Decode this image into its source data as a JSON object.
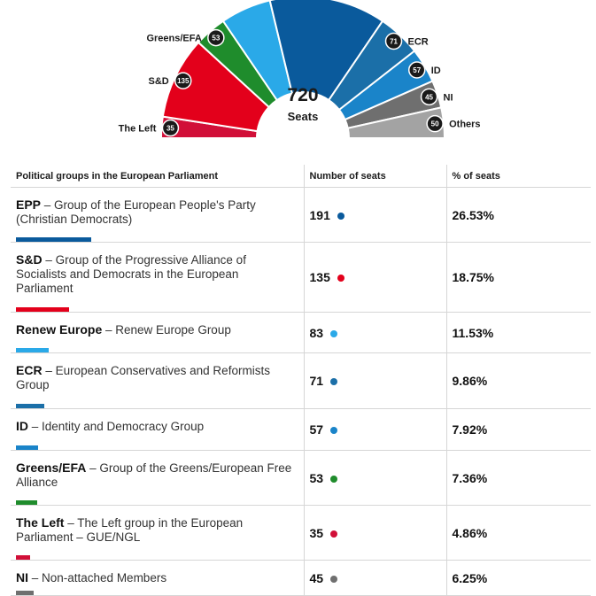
{
  "chart_data": {
    "type": "hemicycle",
    "total": 720,
    "total_label": "Seats",
    "groups": [
      {
        "abbr": "The Left",
        "name": "The Left group in the European Parliament – GUE/NGL",
        "seats": 35,
        "percent": "4.86%",
        "color": "#d10f38"
      },
      {
        "abbr": "S&D",
        "name": "Group of the Progressive Alliance of Socialists and Democrats in the European Parliament",
        "seats": 135,
        "percent": "18.75%",
        "color": "#e3001b"
      },
      {
        "abbr": "Greens/EFA",
        "name": "Group of the Greens/European Free Alliance",
        "seats": 53,
        "percent": "7.36%",
        "color": "#1f8c2c"
      },
      {
        "abbr": "Renew Europe",
        "name": "Renew Europe Group",
        "seats": 83,
        "percent": "11.53%",
        "color": "#2aa9e8"
      },
      {
        "abbr": "EPP",
        "name": "Group of the European People's Party (Christian Democrats)",
        "seats": 191,
        "percent": "26.53%",
        "color": "#0a5a9c"
      },
      {
        "abbr": "ECR",
        "name": "European Conservatives and Reformists Group",
        "seats": 71,
        "percent": "9.86%",
        "color": "#1b6fa8"
      },
      {
        "abbr": "ID",
        "name": "Identity and Democracy Group",
        "seats": 57,
        "percent": "7.92%",
        "color": "#1a84c9"
      },
      {
        "abbr": "NI",
        "name": "Non-attached Members",
        "seats": 45,
        "percent": "6.25%",
        "color": "#6f6f6f"
      },
      {
        "abbr": "Others",
        "name": "",
        "seats": 50,
        "percent": "",
        "color": "#a3a3a3"
      }
    ]
  },
  "table": {
    "headers": {
      "group": "Political groups in the European Parliament",
      "seats": "Number of seats",
      "percent": "% of seats"
    },
    "rows": [
      {
        "abbr": "EPP",
        "desc": " – Group of the European People's Party (Christian Democrats)",
        "seats": "191",
        "percent": "26.53%",
        "color": "#0a5a9c",
        "bar_share": 0.2653
      },
      {
        "abbr": "S&D",
        "desc": " – Group of the Progressive Alliance of Socialists and Democrats in the European Parliament",
        "seats": "135",
        "percent": "18.75%",
        "color": "#e3001b",
        "bar_share": 0.1875
      },
      {
        "abbr": "Renew Europe",
        "desc": " – Renew Europe Group",
        "seats": "83",
        "percent": "11.53%",
        "color": "#2aa9e8",
        "bar_share": 0.1153
      },
      {
        "abbr": "ECR",
        "desc": " – European Conservatives and Reformists Group",
        "seats": "71",
        "percent": "9.86%",
        "color": "#1b6fa8",
        "bar_share": 0.0986
      },
      {
        "abbr": "ID",
        "desc": " – Identity and Democracy Group",
        "seats": "57",
        "percent": "7.92%",
        "color": "#1a84c9",
        "bar_share": 0.0792
      },
      {
        "abbr": "Greens/EFA",
        "desc": " – Group of the Greens/European Free Alliance",
        "seats": "53",
        "percent": "7.36%",
        "color": "#1f8c2c",
        "bar_share": 0.0736
      },
      {
        "abbr": "The Left",
        "desc": " – The Left group in the European Parliament – GUE/NGL",
        "seats": "35",
        "percent": "4.86%",
        "color": "#d10f38",
        "bar_share": 0.0486
      },
      {
        "abbr": "NI",
        "desc": " – Non-attached Members",
        "seats": "45",
        "percent": "6.25%",
        "color": "#6f6f6f",
        "bar_share": 0.0625
      }
    ]
  }
}
